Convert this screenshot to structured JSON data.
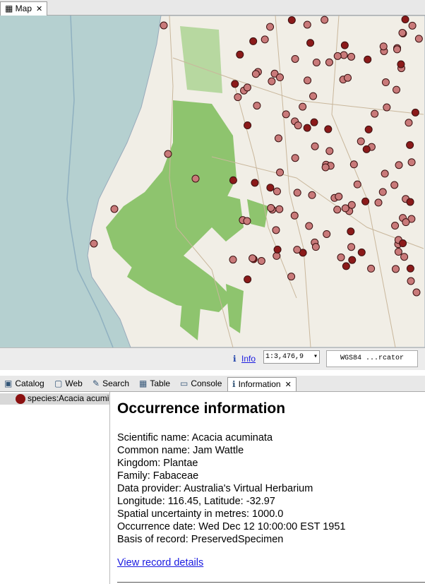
{
  "map_tab": "Map",
  "status": {
    "info": "Info",
    "scale": "1:3,476,9",
    "crs": "WGS84 ...rcator"
  },
  "tabs": [
    "Catalog",
    "Web",
    "Search",
    "Table",
    "Console",
    "Information"
  ],
  "layers": [
    "species:Acacia acumin"
  ],
  "info": {
    "title": "Occurrence information",
    "lines": [
      "Scientific name: Acacia acuminata",
      "Common name: Jam Wattle",
      "Kingdom: Plantae",
      "Family: Fabaceae",
      "Data provider: Australia's Virtual Herbarium",
      "Longitude: 116.45, Latitude: -32.97",
      "Spatial uncertainty in metres: 1000.0",
      "Occurrence date: Wed Dec 12 10:00:00 EST 1951",
      "Basis of record: PreservedSpecimen"
    ],
    "link": "View record details"
  }
}
